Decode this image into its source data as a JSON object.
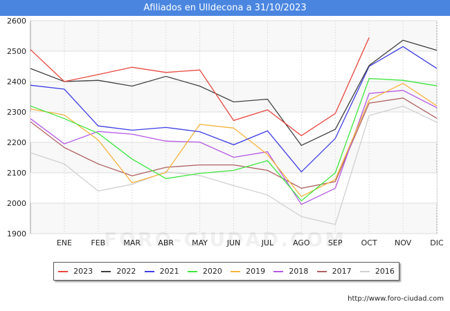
{
  "title": "Afiliados en Ulldecona a 31/10/2023",
  "watermark": "FORO-CIUDAD.COM",
  "footer_url": "http://www.foro-ciudad.com",
  "chart_data": {
    "type": "line",
    "title": "Afiliados en Ulldecona a 31/10/2023",
    "categories": [
      "DIC_prev",
      "ENE",
      "FEB",
      "MAR",
      "ABR",
      "MAY",
      "JUN",
      "JUL",
      "AGO",
      "SEP",
      "OCT",
      "NOV",
      "DIC"
    ],
    "x_tick_labels": [
      "ENE",
      "FEB",
      "MAR",
      "ABR",
      "MAY",
      "JUN",
      "JUL",
      "AGO",
      "SEP",
      "OCT",
      "NOV",
      "DIC"
    ],
    "ylim": [
      1900,
      2600
    ],
    "yticks": [
      1900,
      2000,
      2100,
      2200,
      2300,
      2400,
      2500,
      2600
    ],
    "grid": true,
    "legend_position": "bottom",
    "series": [
      {
        "name": "2023",
        "color": "#e8473f",
        "values": [
          2505,
          2400,
          2423,
          2447,
          2430,
          2438,
          2272,
          2307,
          2222,
          2295,
          2545,
          null,
          null
        ]
      },
      {
        "name": "2022",
        "color": "#404040",
        "values": [
          2443,
          2400,
          2404,
          2385,
          2417,
          2385,
          2333,
          2342,
          2190,
          2243,
          2453,
          2536,
          2503
        ]
      },
      {
        "name": "2021",
        "color": "#3c3ce6",
        "values": [
          2388,
          2375,
          2254,
          2240,
          2249,
          2235,
          2192,
          2238,
          2103,
          2213,
          2450,
          2515,
          2443
        ]
      },
      {
        "name": "2020",
        "color": "#3ee63e",
        "values": [
          2320,
          2278,
          2230,
          2145,
          2081,
          2098,
          2108,
          2140,
          2008,
          2100,
          2410,
          2404,
          2386
        ]
      },
      {
        "name": "2019",
        "color": "#f5b33d",
        "values": [
          2310,
          2290,
          2208,
          2067,
          2101,
          2259,
          2247,
          2160,
          2022,
          2078,
          2339,
          2394,
          2320
        ]
      },
      {
        "name": "2018",
        "color": "#b556e6",
        "values": [
          2278,
          2195,
          2236,
          2227,
          2204,
          2201,
          2151,
          2169,
          1996,
          2049,
          2361,
          2371,
          2314
        ]
      },
      {
        "name": "2017",
        "color": "#b06060",
        "values": [
          2268,
          2183,
          2129,
          2090,
          2118,
          2126,
          2126,
          2108,
          2049,
          2071,
          2329,
          2346,
          2279
        ]
      },
      {
        "name": "2016",
        "color": "#d0d0d0",
        "values": [
          2166,
          2129,
          2040,
          2062,
          2103,
          2091,
          2058,
          2027,
          1956,
          1930,
          2288,
          2319,
          2266
        ]
      }
    ]
  }
}
